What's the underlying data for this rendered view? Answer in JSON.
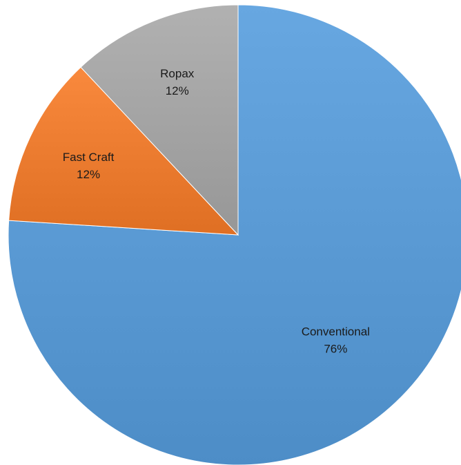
{
  "chart_data": {
    "type": "pie",
    "title": "",
    "slices": [
      {
        "label": "Conventional",
        "value": 76,
        "value_label": "76%",
        "color": "#5b9bd5"
      },
      {
        "label": "Fast Craft",
        "value": 12,
        "value_label": "12%",
        "color": "#ed7d31"
      },
      {
        "label": "Ropax",
        "value": 12,
        "value_label": "12%",
        "color": "#a5a5a5"
      }
    ],
    "start_angle_deg": 0,
    "direction": "clockwise",
    "legend": "none",
    "data_labels": "inside"
  }
}
